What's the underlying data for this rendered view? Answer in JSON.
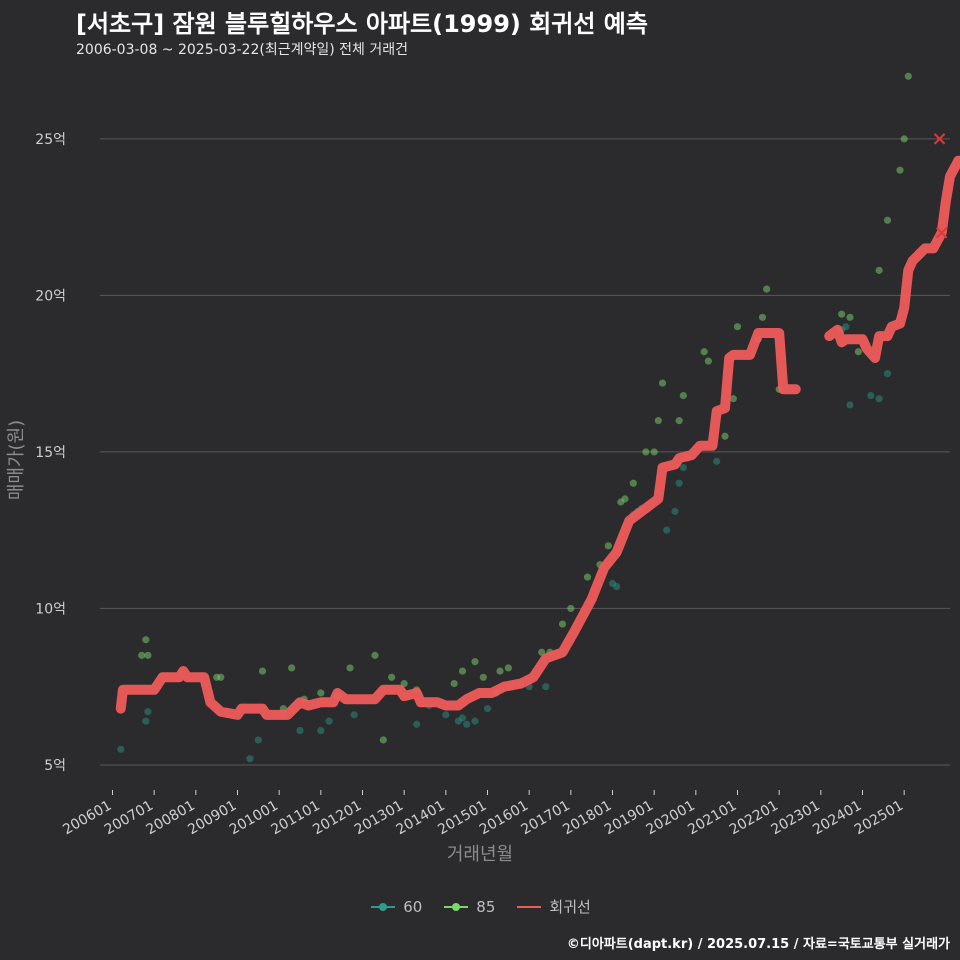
{
  "title": "[서초구] 잠원 블루힐하우스 아파트(1999) 회귀선 예측",
  "subtitle": "2006-03-08 ~ 2025-03-22(최근계약일) 전체 거래건",
  "caption": "©디아파트(dapt.kr) / 2025.07.15 / 자료=국토교통부 실거래가",
  "colors": {
    "s60": "#2a9d8f",
    "s85": "#7bd66b",
    "reg": "#ef5b5b",
    "grid": "#5a595b"
  },
  "chart_data": {
    "type": "scatter",
    "xlabel": "거래년월",
    "ylabel": "매매가(원)",
    "y_unit": "억",
    "yticks": [
      5,
      10,
      15,
      20,
      25
    ],
    "ytick_labels": [
      "5억",
      "10억",
      "15억",
      "20억",
      "25억"
    ],
    "xticks": [
      2006,
      2007,
      2008,
      2009,
      2010,
      2011,
      2012,
      2013,
      2014,
      2015,
      2016,
      2017,
      2018,
      2019,
      2020,
      2021,
      2022,
      2023,
      2024,
      2025
    ],
    "xtick_labels": [
      "200601",
      "200701",
      "200801",
      "200901",
      "201001",
      "201101",
      "201201",
      "201301",
      "201401",
      "201501",
      "201601",
      "201701",
      "201801",
      "201901",
      "202001",
      "202101",
      "202201",
      "202301",
      "202401",
      "202501"
    ],
    "xlim": [
      2005.7,
      2026.1
    ],
    "ylim": [
      4.2,
      27.2
    ],
    "legend": [
      "60",
      "85",
      "회귀선"
    ],
    "series": [
      {
        "name": "60",
        "points": [
          [
            2006.2,
            5.5
          ],
          [
            2006.8,
            6.4
          ],
          [
            2006.85,
            6.7
          ],
          [
            2009.3,
            5.2
          ],
          [
            2009.5,
            5.8
          ],
          [
            2010.1,
            6.6
          ],
          [
            2010.5,
            6.1
          ],
          [
            2011.0,
            6.1
          ],
          [
            2011.2,
            6.4
          ],
          [
            2011.8,
            6.6
          ],
          [
            2013.3,
            6.3
          ],
          [
            2013.6,
            6.9
          ],
          [
            2014.0,
            6.6
          ],
          [
            2014.3,
            6.4
          ],
          [
            2014.4,
            6.5
          ],
          [
            2014.5,
            6.3
          ],
          [
            2014.7,
            6.4
          ],
          [
            2015.0,
            6.8
          ],
          [
            2015.5,
            7.5
          ],
          [
            2015.8,
            7.6
          ],
          [
            2016.0,
            7.5
          ],
          [
            2016.4,
            7.5
          ],
          [
            2018.0,
            10.8
          ],
          [
            2018.1,
            10.7
          ],
          [
            2018.5,
            13.0
          ],
          [
            2018.6,
            13.1
          ],
          [
            2018.7,
            13.2
          ],
          [
            2019.3,
            12.5
          ],
          [
            2019.5,
            13.1
          ],
          [
            2019.6,
            14.0
          ],
          [
            2019.7,
            14.5
          ],
          [
            2019.8,
            14.8
          ],
          [
            2020.5,
            14.7
          ],
          [
            2023.5,
            18.9
          ],
          [
            2023.6,
            19.0
          ],
          [
            2023.7,
            16.5
          ],
          [
            2024.2,
            16.8
          ],
          [
            2024.4,
            16.7
          ],
          [
            2024.6,
            17.5
          ]
        ]
      },
      {
        "name": "85",
        "points": [
          [
            2006.7,
            8.5
          ],
          [
            2006.8,
            9.0
          ],
          [
            2006.85,
            8.5
          ],
          [
            2008.5,
            7.8
          ],
          [
            2008.6,
            7.8
          ],
          [
            2009.6,
            8.0
          ],
          [
            2010.1,
            6.8
          ],
          [
            2010.3,
            8.1
          ],
          [
            2010.6,
            7.1
          ],
          [
            2011.0,
            7.3
          ],
          [
            2011.4,
            7.2
          ],
          [
            2011.7,
            8.1
          ],
          [
            2012.3,
            8.5
          ],
          [
            2012.5,
            5.8
          ],
          [
            2012.7,
            7.8
          ],
          [
            2013.0,
            7.6
          ],
          [
            2013.3,
            7.4
          ],
          [
            2014.2,
            7.6
          ],
          [
            2014.4,
            8.0
          ],
          [
            2014.7,
            8.3
          ],
          [
            2014.9,
            7.8
          ],
          [
            2015.2,
            7.3
          ],
          [
            2015.3,
            8.0
          ],
          [
            2015.5,
            8.1
          ],
          [
            2016.3,
            8.6
          ],
          [
            2016.5,
            8.6
          ],
          [
            2016.8,
            9.5
          ],
          [
            2017.0,
            10.0
          ],
          [
            2017.4,
            11.0
          ],
          [
            2017.7,
            11.4
          ],
          [
            2017.9,
            12.0
          ],
          [
            2018.2,
            13.4
          ],
          [
            2018.3,
            13.5
          ],
          [
            2018.5,
            14.0
          ],
          [
            2018.8,
            15.0
          ],
          [
            2019.0,
            15.0
          ],
          [
            2019.1,
            16.0
          ],
          [
            2019.2,
            17.2
          ],
          [
            2019.6,
            16.0
          ],
          [
            2019.7,
            16.8
          ],
          [
            2020.2,
            18.2
          ],
          [
            2020.3,
            17.9
          ],
          [
            2020.7,
            15.5
          ],
          [
            2020.9,
            16.7
          ],
          [
            2021.0,
            19.0
          ],
          [
            2021.5,
            18.6
          ],
          [
            2021.6,
            19.3
          ],
          [
            2021.7,
            20.2
          ],
          [
            2022.0,
            17.0
          ],
          [
            2023.5,
            19.4
          ],
          [
            2023.7,
            19.3
          ],
          [
            2023.9,
            18.2
          ],
          [
            2024.4,
            20.8
          ],
          [
            2024.6,
            22.4
          ],
          [
            2024.9,
            24.0
          ],
          [
            2025.0,
            25.0
          ],
          [
            2025.1,
            27.0
          ]
        ]
      },
      {
        "name": "회귀선",
        "line": [
          [
            2006.2,
            6.8
          ],
          [
            2006.25,
            7.4
          ],
          [
            2007.0,
            7.4
          ],
          [
            2007.2,
            7.8
          ],
          [
            2007.6,
            7.8
          ],
          [
            2007.7,
            8.0
          ],
          [
            2007.8,
            7.8
          ],
          [
            2008.2,
            7.8
          ],
          [
            2008.35,
            7.0
          ],
          [
            2008.6,
            6.7
          ],
          [
            2009.0,
            6.6
          ],
          [
            2009.1,
            6.8
          ],
          [
            2009.6,
            6.8
          ],
          [
            2009.7,
            6.6
          ],
          [
            2010.2,
            6.6
          ],
          [
            2010.5,
            7.0
          ],
          [
            2010.7,
            6.9
          ],
          [
            2011.0,
            7.0
          ],
          [
            2011.3,
            7.0
          ],
          [
            2011.4,
            7.3
          ],
          [
            2011.6,
            7.1
          ],
          [
            2012.3,
            7.1
          ],
          [
            2012.5,
            7.4
          ],
          [
            2012.9,
            7.4
          ],
          [
            2013.0,
            7.2
          ],
          [
            2013.3,
            7.3
          ],
          [
            2013.4,
            7.0
          ],
          [
            2013.6,
            7.0
          ],
          [
            2013.8,
            7.0
          ],
          [
            2014.0,
            6.9
          ],
          [
            2014.3,
            6.9
          ],
          [
            2014.5,
            7.1
          ],
          [
            2014.8,
            7.3
          ],
          [
            2015.1,
            7.3
          ],
          [
            2015.4,
            7.5
          ],
          [
            2015.8,
            7.6
          ],
          [
            2016.1,
            7.8
          ],
          [
            2016.4,
            8.4
          ],
          [
            2016.8,
            8.6
          ],
          [
            2017.1,
            9.3
          ],
          [
            2017.5,
            10.3
          ],
          [
            2017.8,
            11.3
          ],
          [
            2018.1,
            11.8
          ],
          [
            2018.4,
            12.8
          ],
          [
            2018.6,
            13.0
          ],
          [
            2018.9,
            13.3
          ],
          [
            2019.1,
            13.5
          ],
          [
            2019.2,
            14.5
          ],
          [
            2019.5,
            14.6
          ],
          [
            2019.6,
            14.8
          ],
          [
            2019.9,
            14.9
          ],
          [
            2020.1,
            15.2
          ],
          [
            2020.4,
            15.2
          ],
          [
            2020.5,
            16.3
          ],
          [
            2020.7,
            16.4
          ],
          [
            2020.8,
            18.0
          ],
          [
            2020.9,
            18.1
          ],
          [
            2021.3,
            18.1
          ],
          [
            2021.5,
            18.8
          ],
          [
            2022.0,
            18.8
          ],
          [
            2022.1,
            17.0
          ],
          [
            2022.4,
            17.0
          ],
          null,
          [
            2023.2,
            18.7
          ],
          [
            2023.4,
            18.9
          ],
          [
            2023.5,
            18.5
          ],
          [
            2023.6,
            18.6
          ],
          [
            2024.0,
            18.6
          ],
          [
            2024.1,
            18.3
          ],
          [
            2024.3,
            18.0
          ],
          [
            2024.4,
            18.7
          ],
          [
            2024.6,
            18.7
          ],
          [
            2024.7,
            19.0
          ],
          [
            2024.9,
            19.1
          ],
          [
            2025.0,
            19.6
          ],
          [
            2025.1,
            20.8
          ],
          [
            2025.2,
            21.1
          ],
          [
            2025.5,
            21.5
          ],
          [
            2025.7,
            21.5
          ],
          [
            2025.9,
            22.0
          ],
          [
            2026.0,
            23.0
          ],
          [
            2026.1,
            23.8
          ],
          [
            2026.3,
            24.3
          ],
          [
            2026.5,
            24.3
          ]
        ],
        "markers": [
          [
            2025.85,
            25.0
          ],
          [
            2025.9,
            22.0
          ]
        ]
      }
    ]
  }
}
